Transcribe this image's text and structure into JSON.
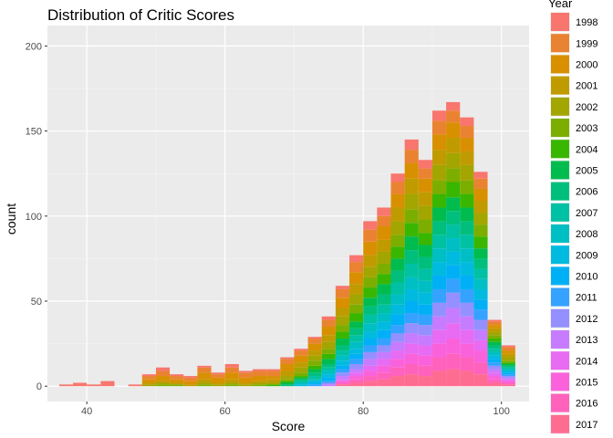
{
  "chart_data": {
    "type": "bar",
    "stacked": true,
    "title": "Distribution of Critic Scores",
    "xlabel": "Score",
    "ylabel": "count",
    "xlim": [
      34.3,
      104
    ],
    "ylim": [
      -9,
      212
    ],
    "x_ticks": [
      40,
      60,
      80,
      100
    ],
    "y_ticks": [
      0,
      50,
      100,
      150,
      200
    ],
    "grid": true,
    "legend_title": "Year",
    "legend_position": "right",
    "bin_width": 2,
    "bins": [
      37,
      39,
      41,
      43,
      45,
      47,
      49,
      51,
      53,
      55,
      57,
      59,
      61,
      63,
      65,
      67,
      69,
      71,
      73,
      75,
      77,
      79,
      81,
      83,
      85,
      87,
      89,
      91,
      93,
      95,
      97,
      99,
      101
    ],
    "series": [
      {
        "name": "1998",
        "color": "#F8766D",
        "values": [
          1,
          2,
          1,
          3,
          0,
          1,
          1,
          2,
          1,
          1,
          1,
          1,
          2,
          1,
          1,
          1,
          1,
          1,
          1,
          2,
          2,
          4,
          5,
          5,
          5,
          6,
          5,
          6,
          5,
          5,
          4,
          1,
          1
        ]
      },
      {
        "name": "1999",
        "color": "#EA8331",
        "values": [
          0,
          0,
          0,
          0,
          0,
          0,
          2,
          3,
          2,
          2,
          3,
          2,
          3,
          3,
          3,
          3,
          3,
          3,
          3,
          4,
          5,
          6,
          7,
          6,
          7,
          8,
          6,
          8,
          7,
          7,
          6,
          2,
          2
        ]
      },
      {
        "name": "2000",
        "color": "#D89000",
        "values": [
          0,
          0,
          0,
          0,
          0,
          0,
          2,
          3,
          2,
          2,
          4,
          3,
          4,
          3,
          3,
          2,
          4,
          4,
          4,
          5,
          6,
          7,
          8,
          8,
          8,
          9,
          8,
          9,
          9,
          8,
          7,
          2,
          2
        ]
      },
      {
        "name": "2001",
        "color": "#C09B00",
        "values": [
          0,
          0,
          0,
          0,
          0,
          0,
          1,
          1,
          1,
          1,
          2,
          1,
          2,
          1,
          1,
          2,
          3,
          3,
          3,
          4,
          5,
          6,
          7,
          7,
          8,
          9,
          8,
          9,
          9,
          8,
          7,
          2,
          2
        ]
      },
      {
        "name": "2002",
        "color": "#A3A500",
        "values": [
          0,
          0,
          0,
          0,
          0,
          0,
          1,
          1,
          0,
          0,
          1,
          1,
          1,
          1,
          1,
          1,
          2,
          3,
          3,
          4,
          5,
          6,
          6,
          7,
          8,
          9,
          8,
          9,
          9,
          9,
          7,
          2,
          2
        ]
      },
      {
        "name": "2003",
        "color": "#7CAE00",
        "values": [
          0,
          0,
          0,
          0,
          0,
          0,
          0,
          1,
          1,
          0,
          1,
          0,
          1,
          0,
          1,
          0,
          1,
          2,
          3,
          3,
          4,
          5,
          6,
          6,
          7,
          8,
          8,
          8,
          8,
          8,
          7,
          2,
          1
        ]
      },
      {
        "name": "2004",
        "color": "#39B600",
        "values": [
          0,
          0,
          0,
          0,
          0,
          0,
          0,
          0,
          0,
          0,
          0,
          0,
          0,
          0,
          0,
          1,
          1,
          1,
          2,
          3,
          4,
          5,
          6,
          6,
          7,
          8,
          7,
          8,
          9,
          8,
          7,
          2,
          1
        ]
      },
      {
        "name": "2005",
        "color": "#00BB4E",
        "values": [
          0,
          0,
          0,
          0,
          0,
          0,
          0,
          0,
          0,
          0,
          0,
          0,
          0,
          0,
          0,
          0,
          1,
          1,
          2,
          3,
          4,
          4,
          5,
          6,
          7,
          8,
          7,
          8,
          8,
          8,
          6,
          2,
          1
        ]
      },
      {
        "name": "2006",
        "color": "#00BF7D",
        "values": [
          0,
          0,
          0,
          0,
          0,
          0,
          0,
          0,
          0,
          0,
          0,
          0,
          0,
          0,
          0,
          0,
          1,
          1,
          2,
          2,
          3,
          4,
          5,
          6,
          7,
          8,
          7,
          8,
          8,
          8,
          6,
          2,
          1
        ]
      },
      {
        "name": "2007",
        "color": "#00C1A3",
        "values": [
          0,
          0,
          0,
          0,
          0,
          0,
          0,
          0,
          0,
          0,
          0,
          0,
          0,
          0,
          0,
          0,
          0,
          1,
          2,
          2,
          3,
          4,
          5,
          5,
          7,
          8,
          7,
          8,
          8,
          8,
          6,
          2,
          1
        ]
      },
      {
        "name": "2008",
        "color": "#00BFC4",
        "values": [
          0,
          0,
          0,
          0,
          0,
          0,
          0,
          0,
          0,
          0,
          0,
          0,
          0,
          0,
          0,
          0,
          0,
          1,
          1,
          2,
          3,
          4,
          5,
          5,
          6,
          7,
          7,
          8,
          8,
          8,
          6,
          2,
          1
        ]
      },
      {
        "name": "2009",
        "color": "#00BAE0",
        "values": [
          0,
          0,
          0,
          0,
          0,
          0,
          0,
          0,
          0,
          0,
          0,
          0,
          0,
          0,
          0,
          0,
          0,
          1,
          1,
          2,
          3,
          3,
          4,
          5,
          6,
          7,
          7,
          8,
          8,
          8,
          6,
          2,
          1
        ]
      },
      {
        "name": "2010",
        "color": "#00B0F6",
        "values": [
          0,
          0,
          0,
          0,
          0,
          0,
          0,
          0,
          0,
          0,
          0,
          0,
          0,
          0,
          0,
          0,
          0,
          0,
          1,
          2,
          2,
          3,
          4,
          5,
          6,
          7,
          6,
          8,
          8,
          8,
          6,
          2,
          1
        ]
      },
      {
        "name": "2011",
        "color": "#35A2FF",
        "values": [
          0,
          0,
          0,
          0,
          0,
          0,
          0,
          0,
          0,
          0,
          0,
          0,
          0,
          0,
          0,
          0,
          0,
          0,
          1,
          1,
          2,
          3,
          4,
          4,
          5,
          6,
          6,
          8,
          8,
          8,
          6,
          2,
          1
        ]
      },
      {
        "name": "2012",
        "color": "#9590FF",
        "values": [
          0,
          0,
          0,
          0,
          0,
          0,
          0,
          0,
          0,
          0,
          0,
          0,
          0,
          0,
          0,
          0,
          0,
          0,
          0,
          1,
          2,
          3,
          4,
          4,
          5,
          6,
          6,
          8,
          9,
          8,
          6,
          2,
          1
        ]
      },
      {
        "name": "2013",
        "color": "#C77CFF",
        "values": [
          0,
          0,
          0,
          0,
          0,
          0,
          0,
          0,
          0,
          0,
          0,
          0,
          0,
          0,
          0,
          0,
          0,
          0,
          0,
          1,
          2,
          2,
          4,
          4,
          5,
          6,
          6,
          8,
          9,
          8,
          6,
          2,
          1
        ]
      },
      {
        "name": "2014",
        "color": "#E76BF3",
        "values": [
          0,
          0,
          0,
          0,
          0,
          0,
          0,
          0,
          0,
          0,
          0,
          0,
          0,
          0,
          0,
          0,
          0,
          0,
          0,
          0,
          1,
          2,
          3,
          4,
          5,
          6,
          6,
          8,
          9,
          8,
          6,
          2,
          1
        ]
      },
      {
        "name": "2015",
        "color": "#FA62DB",
        "values": [
          0,
          0,
          0,
          0,
          0,
          0,
          0,
          0,
          0,
          0,
          0,
          0,
          0,
          0,
          0,
          0,
          0,
          0,
          0,
          0,
          1,
          2,
          3,
          4,
          5,
          6,
          6,
          8,
          9,
          8,
          7,
          2,
          1
        ]
      },
      {
        "name": "2016",
        "color": "#FF62BC",
        "values": [
          0,
          0,
          0,
          0,
          0,
          0,
          0,
          0,
          0,
          0,
          0,
          0,
          0,
          0,
          0,
          0,
          0,
          0,
          0,
          0,
          1,
          2,
          3,
          4,
          5,
          6,
          6,
          8,
          9,
          8,
          7,
          2,
          1
        ]
      },
      {
        "name": "2017",
        "color": "#FF6C91",
        "values": [
          0,
          0,
          0,
          0,
          0,
          0,
          0,
          0,
          0,
          0,
          0,
          0,
          0,
          0,
          0,
          0,
          0,
          0,
          0,
          0,
          1,
          2,
          3,
          4,
          6,
          7,
          6,
          9,
          10,
          9,
          7,
          2,
          1
        ]
      }
    ]
  }
}
